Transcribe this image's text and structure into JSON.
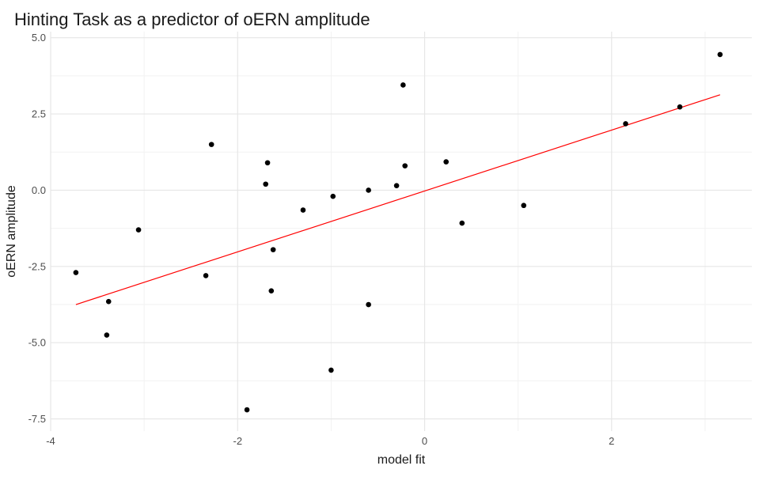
{
  "chart_data": {
    "type": "scatter",
    "title": "Hinting Task as a predictor of oERN amplitude",
    "xlabel": "model fit",
    "ylabel": "oERN amplitude",
    "xlim": [
      -4.0,
      3.5
    ],
    "ylim": [
      -7.9,
      5.2
    ],
    "x_ticks": [
      -4,
      -2,
      0,
      2
    ],
    "x_tick_labels": [
      "-4",
      "-2",
      "0",
      "2"
    ],
    "y_ticks": [
      5.0,
      2.5,
      0.0,
      -2.5,
      -5.0,
      -7.5
    ],
    "y_tick_labels": [
      "5.0",
      "2.5",
      "0.0",
      "-2.5",
      "-5.0",
      "-7.5"
    ],
    "grid": true,
    "point_color": "#000000",
    "points": [
      {
        "x": -3.73,
        "y": -2.7
      },
      {
        "x": -3.38,
        "y": -3.65
      },
      {
        "x": -3.4,
        "y": -4.75
      },
      {
        "x": -3.06,
        "y": -1.3
      },
      {
        "x": -2.34,
        "y": -2.8
      },
      {
        "x": -2.28,
        "y": 1.5
      },
      {
        "x": -1.9,
        "y": -7.2
      },
      {
        "x": -1.68,
        "y": 0.9
      },
      {
        "x": -1.7,
        "y": 0.2
      },
      {
        "x": -1.62,
        "y": -1.95
      },
      {
        "x": -1.64,
        "y": -3.3
      },
      {
        "x": -1.3,
        "y": -0.65
      },
      {
        "x": -0.98,
        "y": -0.2
      },
      {
        "x": -1.0,
        "y": -5.9
      },
      {
        "x": -0.6,
        "y": 0.0
      },
      {
        "x": -0.6,
        "y": -3.75
      },
      {
        "x": -0.3,
        "y": 0.15
      },
      {
        "x": -0.23,
        "y": 3.45
      },
      {
        "x": -0.21,
        "y": 0.8
      },
      {
        "x": 0.23,
        "y": 0.93
      },
      {
        "x": 0.4,
        "y": -1.08
      },
      {
        "x": 1.06,
        "y": -0.5
      },
      {
        "x": 2.15,
        "y": 2.18
      },
      {
        "x": 2.73,
        "y": 2.73
      },
      {
        "x": 3.16,
        "y": 4.45
      }
    ],
    "fit_line": {
      "color": "#ff0000",
      "x": [
        -3.73,
        3.16
      ],
      "y": [
        -3.75,
        3.13
      ]
    }
  }
}
